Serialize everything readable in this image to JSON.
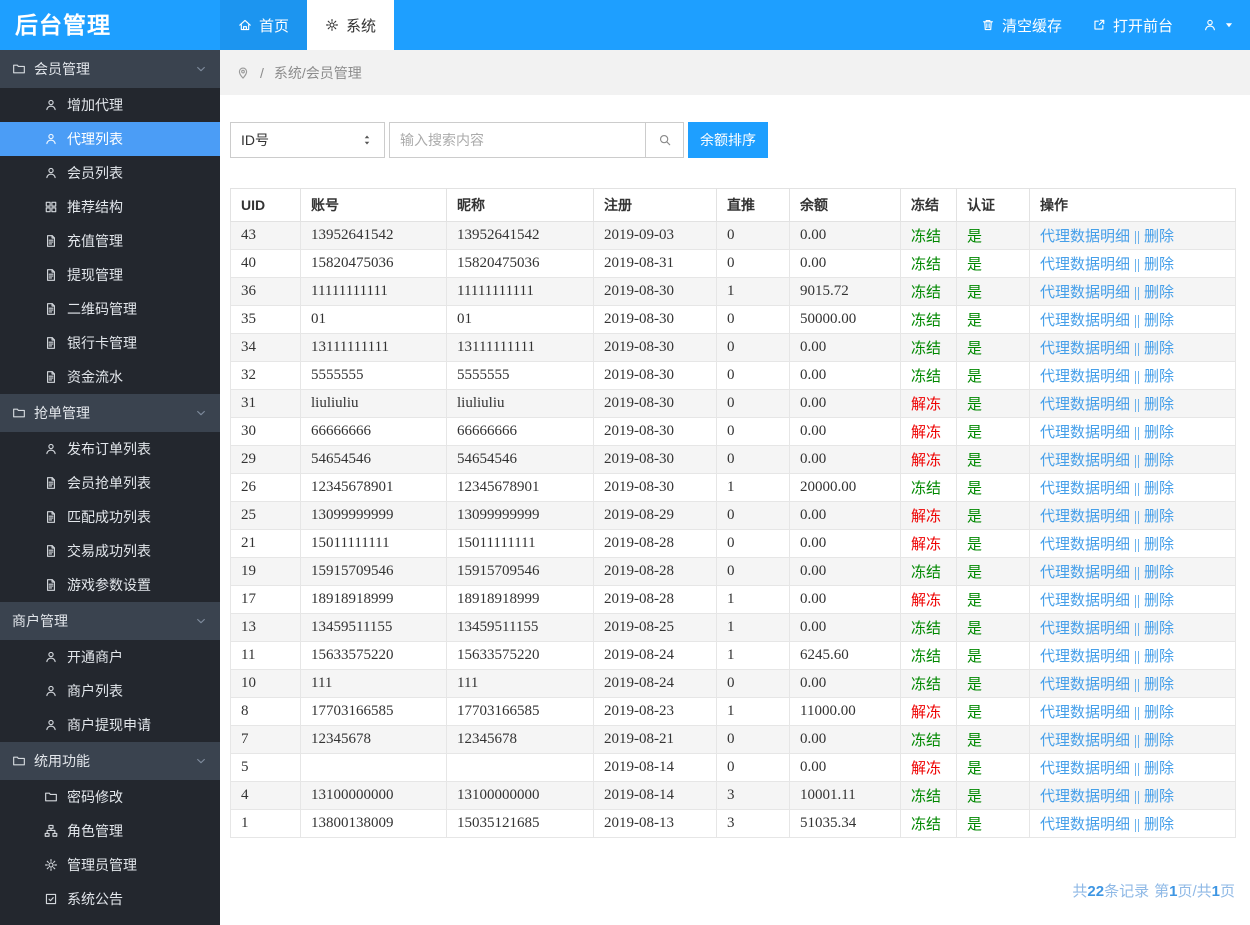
{
  "header": {
    "logo": "后台管理",
    "tabs": [
      {
        "label": "首页",
        "icon": "home",
        "active": false
      },
      {
        "label": "系统",
        "icon": "gear",
        "active": true
      }
    ],
    "actions": [
      {
        "label": "清空缓存",
        "icon": "trash"
      },
      {
        "label": "打开前台",
        "icon": "external-link"
      }
    ],
    "user_menu": {
      "user_icon": "user",
      "caret_icon": "caret-down"
    }
  },
  "sidebar": {
    "groups": [
      {
        "label": "会员管理",
        "icon": "folder",
        "items": [
          {
            "label": "增加代理",
            "icon": "person",
            "active": false
          },
          {
            "label": "代理列表",
            "icon": "person",
            "active": true
          },
          {
            "label": "会员列表",
            "icon": "person",
            "active": false
          },
          {
            "label": "推荐结构",
            "icon": "grid",
            "active": false
          },
          {
            "label": "充值管理",
            "icon": "document",
            "active": false
          },
          {
            "label": "提现管理",
            "icon": "document",
            "active": false
          },
          {
            "label": "二维码管理",
            "icon": "document",
            "active": false
          },
          {
            "label": "银行卡管理",
            "icon": "document",
            "active": false
          },
          {
            "label": "资金流水",
            "icon": "document",
            "active": false
          }
        ]
      },
      {
        "label": "抢单管理",
        "icon": "folder",
        "items": [
          {
            "label": "发布订单列表",
            "icon": "person",
            "active": false
          },
          {
            "label": "会员抢单列表",
            "icon": "document",
            "active": false
          },
          {
            "label": "匹配成功列表",
            "icon": "document",
            "active": false
          },
          {
            "label": "交易成功列表",
            "icon": "document",
            "active": false
          },
          {
            "label": "游戏参数设置",
            "icon": "document",
            "active": false
          }
        ]
      },
      {
        "label": "商户管理",
        "icon": "",
        "items": [
          {
            "label": "开通商户",
            "icon": "person",
            "active": false
          },
          {
            "label": "商户列表",
            "icon": "person",
            "active": false
          },
          {
            "label": "商户提现申请",
            "icon": "person",
            "active": false
          }
        ]
      },
      {
        "label": "统用功能",
        "icon": "folder",
        "items": [
          {
            "label": "密码修改",
            "icon": "folder",
            "active": false
          },
          {
            "label": "角色管理",
            "icon": "sitemap",
            "active": false
          },
          {
            "label": "管理员管理",
            "icon": "gear",
            "active": false
          },
          {
            "label": "系统公告",
            "icon": "notice",
            "active": false
          }
        ]
      }
    ]
  },
  "breadcrumb": {
    "separator": "/",
    "path": "系统/会员管理"
  },
  "toolbar": {
    "filter_value": "ID号",
    "search_placeholder": "输入搜索内容",
    "sort_button": "余额排序"
  },
  "table": {
    "columns": [
      "UID",
      "账号",
      "昵称",
      "注册",
      "直推",
      "余额",
      "冻结",
      "认证",
      "操作"
    ],
    "rows": [
      [
        "43",
        "13952641542",
        "13952641542",
        "2019-09-03",
        "0",
        "0.00",
        "冻结",
        "是"
      ],
      [
        "40",
        "15820475036",
        "15820475036",
        "2019-08-31",
        "0",
        "0.00",
        "冻结",
        "是"
      ],
      [
        "36",
        "11111111111",
        "11111111111",
        "2019-08-30",
        "1",
        "9015.72",
        "冻结",
        "是"
      ],
      [
        "35",
        "01",
        "01",
        "2019-08-30",
        "0",
        "50000.00",
        "冻结",
        "是"
      ],
      [
        "34",
        "13111111111",
        "13111111111",
        "2019-08-30",
        "0",
        "0.00",
        "冻结",
        "是"
      ],
      [
        "32",
        "5555555",
        "5555555",
        "2019-08-30",
        "0",
        "0.00",
        "冻结",
        "是"
      ],
      [
        "31",
        "liuliuliu",
        "liuliuliu",
        "2019-08-30",
        "0",
        "0.00",
        "解冻",
        "是"
      ],
      [
        "30",
        "66666666",
        "66666666",
        "2019-08-30",
        "0",
        "0.00",
        "解冻",
        "是"
      ],
      [
        "29",
        "54654546",
        "54654546",
        "2019-08-30",
        "0",
        "0.00",
        "解冻",
        "是"
      ],
      [
        "26",
        "12345678901",
        "12345678901",
        "2019-08-30",
        "1",
        "20000.00",
        "冻结",
        "是"
      ],
      [
        "25",
        "13099999999",
        "13099999999",
        "2019-08-29",
        "0",
        "0.00",
        "解冻",
        "是"
      ],
      [
        "21",
        "15011111111",
        "15011111111",
        "2019-08-28",
        "0",
        "0.00",
        "解冻",
        "是"
      ],
      [
        "19",
        "15915709546",
        "15915709546",
        "2019-08-28",
        "0",
        "0.00",
        "冻结",
        "是"
      ],
      [
        "17",
        "18918918999",
        "18918918999",
        "2019-08-28",
        "1",
        "0.00",
        "解冻",
        "是"
      ],
      [
        "13",
        "13459511155",
        "13459511155",
        "2019-08-25",
        "1",
        "0.00",
        "冻结",
        "是"
      ],
      [
        "11",
        "15633575220",
        "15633575220",
        "2019-08-24",
        "1",
        "6245.60",
        "冻结",
        "是"
      ],
      [
        "10",
        "111",
        "111",
        "2019-08-24",
        "0",
        "0.00",
        "冻结",
        "是"
      ],
      [
        "8",
        "17703166585",
        "17703166585",
        "2019-08-23",
        "1",
        "11000.00",
        "解冻",
        "是"
      ],
      [
        "7",
        "12345678",
        "12345678",
        "2019-08-21",
        "0",
        "0.00",
        "冻结",
        "是"
      ],
      [
        "5",
        "",
        "",
        "2019-08-14",
        "0",
        "0.00",
        "解冻",
        "是"
      ],
      [
        "4",
        "13100000000",
        "13100000000",
        "2019-08-14",
        "3",
        "10001.11",
        "冻结",
        "是"
      ],
      [
        "1",
        "13800138009",
        "15035121685",
        "2019-08-13",
        "3",
        "51035.34",
        "冻结",
        "是"
      ]
    ],
    "row_actions": {
      "detail": "代理数据明细",
      "separator": "||",
      "delete": "删除"
    },
    "status_colors": {
      "冻结": "#008800",
      "解冻": "#EE0000",
      "是": "#008800"
    }
  },
  "pagination": {
    "total_prefix": "共",
    "total": "22",
    "records_label": "条记录",
    "page_prefix": "第",
    "page": "1",
    "page_mid": "页/共",
    "pages": "1",
    "page_suffix": "页"
  },
  "colors": {
    "primary": "#1E9FFF",
    "link": "#459FE9",
    "frozen": "#008800",
    "unfrozen": "#EE0000",
    "pagination_text": "#8FB9E6",
    "pagination_number": "#3E96E3"
  }
}
